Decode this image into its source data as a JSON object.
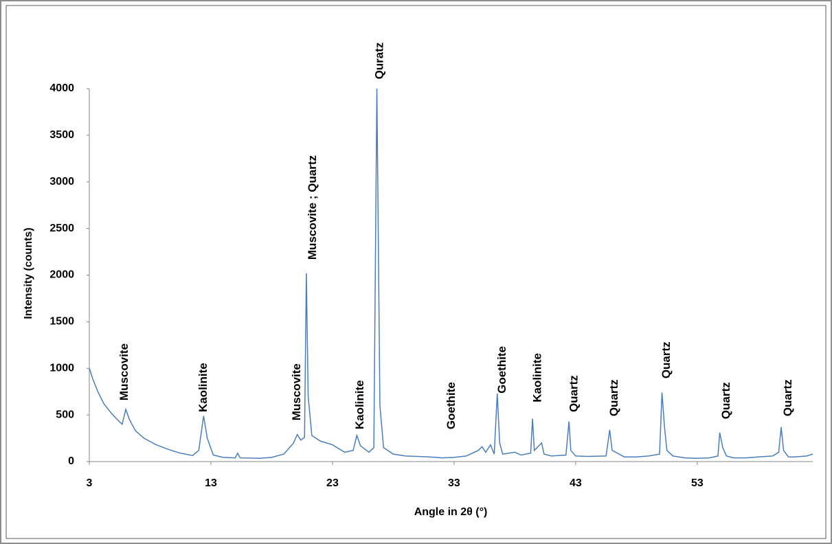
{
  "chart_data": {
    "type": "line",
    "x_label": "Angle in 2θ (°)",
    "y_label": "Intensity (counts)",
    "xlim": [
      3,
      62.5
    ],
    "ylim": [
      0,
      4000
    ],
    "xticks": [
      3,
      13,
      23,
      33,
      43,
      53
    ],
    "yticks": [
      0,
      500,
      1000,
      1500,
      2000,
      2500,
      3000,
      3500,
      4000
    ],
    "grid": false,
    "series": [
      {
        "color": "#4a7ebb",
        "x": [
          3,
          3.3,
          3.7,
          4.2,
          4.8,
          5.3,
          5.7,
          6.0,
          6.3,
          6.8,
          7.5,
          8.5,
          9.5,
          10.5,
          11.5,
          12.0,
          12.4,
          12.7,
          13.2,
          14,
          15,
          15.2,
          15.4,
          17,
          18,
          19,
          19.8,
          20.1,
          20.4,
          20.7,
          20.85,
          21.0,
          21.3,
          22,
          23,
          24,
          24.7,
          25.0,
          25.3,
          26,
          26.4,
          26.65,
          26.9,
          27.2,
          28,
          29,
          30,
          31,
          32,
          33,
          34,
          35,
          35.3,
          35.6,
          36,
          36.3,
          36.55,
          36.75,
          37,
          38,
          38.5,
          39.3,
          39.45,
          39.6,
          40.2,
          40.4,
          41,
          42.2,
          42.45,
          42.6,
          43,
          44,
          45.5,
          45.8,
          46.0,
          47,
          48,
          49,
          49.9,
          50.1,
          50.3,
          50.5,
          51,
          52,
          53,
          54,
          54.7,
          54.85,
          55.1,
          55.4,
          56,
          57,
          58,
          59.2,
          59.7,
          59.9,
          60.1,
          60.5,
          61,
          62,
          62.5
        ],
        "values": [
          1000,
          880,
          750,
          620,
          520,
          450,
          400,
          560,
          450,
          330,
          250,
          180,
          130,
          90,
          65,
          120,
          490,
          250,
          70,
          45,
          40,
          90,
          40,
          35,
          45,
          80,
          200,
          290,
          230,
          260,
          2020,
          700,
          280,
          220,
          180,
          100,
          120,
          280,
          170,
          100,
          150,
          4000,
          600,
          150,
          80,
          60,
          55,
          50,
          40,
          45,
          60,
          120,
          160,
          100,
          180,
          80,
          730,
          200,
          80,
          100,
          70,
          90,
          460,
          120,
          200,
          80,
          60,
          70,
          430,
          120,
          60,
          55,
          60,
          340,
          120,
          50,
          50,
          60,
          80,
          740,
          380,
          120,
          60,
          40,
          35,
          40,
          60,
          310,
          150,
          60,
          40,
          40,
          50,
          60,
          100,
          370,
          120,
          50,
          50,
          60,
          80
        ]
      }
    ],
    "annotations": [
      {
        "text": "Muscovite",
        "x": 5.9,
        "y": 655
      },
      {
        "text": "Kaolinite",
        "x": 12.4,
        "y": 530
      },
      {
        "text": "Muscovite",
        "x": 20.1,
        "y": 440
      },
      {
        "text": "Muscovite ; Quartz",
        "x": 21.4,
        "y": 2165
      },
      {
        "text": "Kaolinite",
        "x": 25.3,
        "y": 345
      },
      {
        "text": "Quratz",
        "x": 26.9,
        "y": 4100
      },
      {
        "text": "Goethite",
        "x": 32.8,
        "y": 345
      },
      {
        "text": "Goethite",
        "x": 37.0,
        "y": 730
      },
      {
        "text": "Kaolinite",
        "x": 39.9,
        "y": 635
      },
      {
        "text": "Quartz",
        "x": 42.9,
        "y": 530
      },
      {
        "text": "Quartz",
        "x": 46.2,
        "y": 485
      },
      {
        "text": "Quartz",
        "x": 50.5,
        "y": 890
      },
      {
        "text": "Quartz",
        "x": 55.4,
        "y": 455
      },
      {
        "text": "Quartz",
        "x": 60.5,
        "y": 485
      }
    ]
  }
}
